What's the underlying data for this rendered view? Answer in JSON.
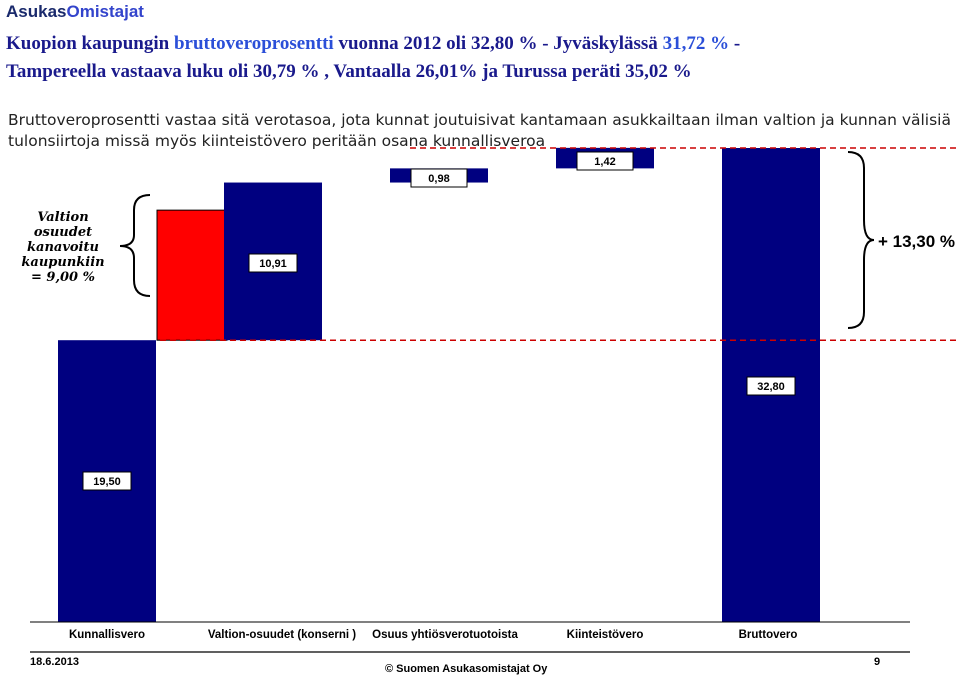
{
  "brand": {
    "part1": "Asukas",
    "part2": "Omistajat"
  },
  "title": {
    "l1a": "Kuopion kaupungin ",
    "l1b": "bruttoveroprosentti",
    "l1c": " vuonna 2012 oli  32,80 % - Jyväskylässä ",
    "l1d": "31,72 %",
    "l1e": " -",
    "l2": "Tampereella vastaava luku oli 30,79 % , Vantaalla 26,01%  ja Turussa peräti 35,02 %"
  },
  "subtitle": "Bruttoveroprosentti vastaa sitä verotasoa, jota kunnat joutuisivat kantamaan asukkailtaan ilman valtion ja kunnan välisiä tulonsiirtoja missä myös kiinteistövero peritään osana kunnallisveroa",
  "side_label": {
    "l1": "Valtion",
    "l2": "osuudet",
    "l3": "kanavoitu",
    "l4": "kaupunkiin",
    "l5": "= 9,00  %"
  },
  "plus_label": "+ 13,30 %",
  "footer": {
    "date": "18.6.2013",
    "copyright": "© Suomen Asukasomistajat Oy",
    "page": "9"
  },
  "colors": {
    "bar": "#000080",
    "red": "#ff0000",
    "dashed": "#cc0000",
    "text": "#000000"
  },
  "chart_data": {
    "type": "bar",
    "subtype": "waterfall",
    "categories": [
      "Kunnallisvero",
      "Valtion-osuudet (konserni )",
      "Osuus yhtiösverotuotoista",
      "Kiinteistövero",
      "Bruttovero"
    ],
    "values": [
      19.5,
      10.91,
      0.98,
      1.42,
      32.8
    ],
    "value_labels": [
      "19,50",
      "10,91",
      "0,98",
      "1,42",
      "32,80"
    ],
    "kind": [
      "total",
      "delta",
      "delta",
      "delta",
      "total"
    ],
    "red_segment": {
      "from": 19.5,
      "to": 28.5
    },
    "ylim": [
      0,
      33.5
    ],
    "grid": false,
    "legend": "none"
  }
}
